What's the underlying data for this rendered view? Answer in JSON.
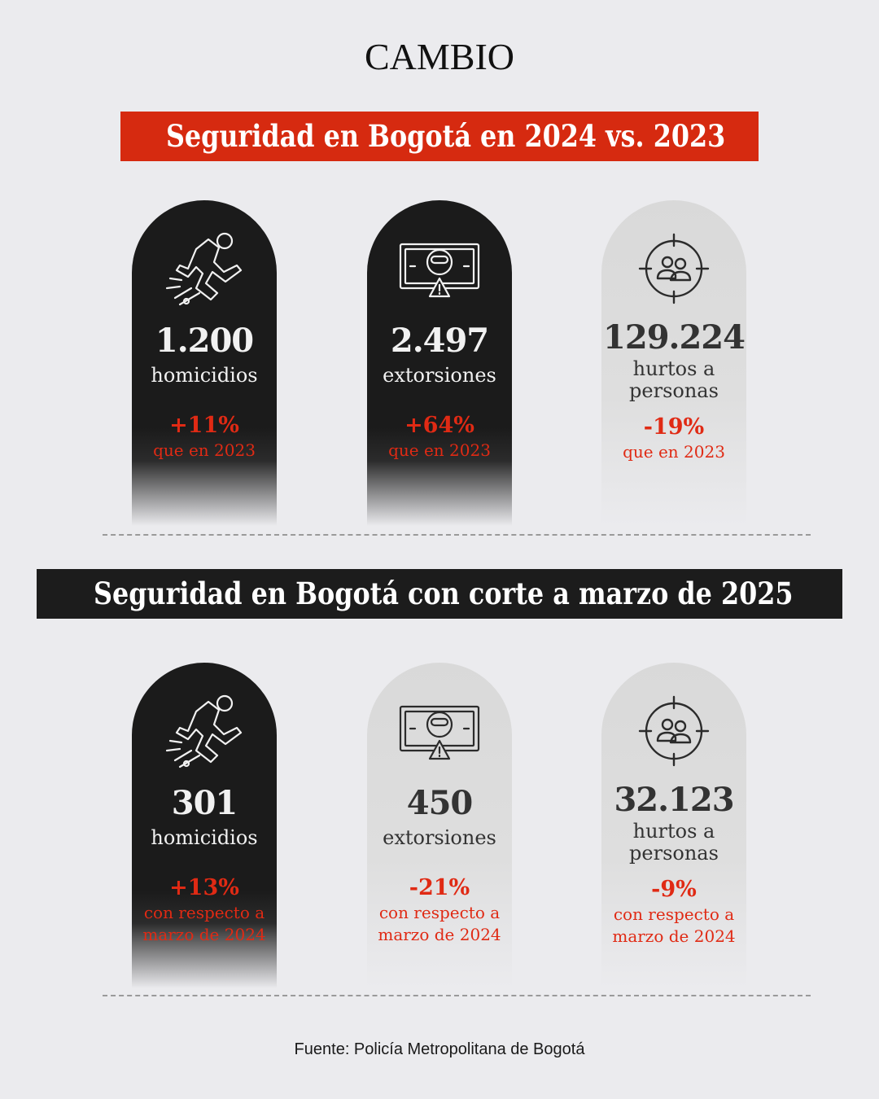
{
  "brand": "CAMBIO",
  "section1": {
    "title": "Seguridad en Bogotá en 2024 vs. 2023",
    "accent": "#d62a10",
    "cards": [
      {
        "icon": "running-person-icon",
        "value": "1.200",
        "label": "homicidios",
        "change": "+11%",
        "comparison": "que en 2023",
        "theme": "dark"
      },
      {
        "icon": "extortion-banknote-icon",
        "value": "2.497",
        "label": "extorsiones",
        "change": "+64%",
        "comparison": "que en 2023",
        "theme": "dark"
      },
      {
        "icon": "target-people-icon",
        "value": "129.224",
        "label_line1": "hurtos a",
        "label_line2": "personas",
        "change": "-19%",
        "comparison": "que en 2023",
        "theme": "light"
      }
    ]
  },
  "section2": {
    "title": "Seguridad en Bogotá con corte a marzo de 2025",
    "cards": [
      {
        "icon": "running-person-icon",
        "value": "301",
        "label": "homicidios",
        "change": "+13%",
        "comparison_line1": "con respecto a",
        "comparison_line2": "marzo de 2024",
        "theme": "dark"
      },
      {
        "icon": "extortion-banknote-icon",
        "value": "450",
        "label": "extorsiones",
        "change": "-21%",
        "comparison_line1": "con respecto a",
        "comparison_line2": "marzo de 2024",
        "theme": "light"
      },
      {
        "icon": "target-people-icon",
        "value": "32.123",
        "label_line1": "hurtos a",
        "label_line2": "personas",
        "change": "-9%",
        "comparison_line1": "con respecto a",
        "comparison_line2": "marzo de 2024",
        "theme": "light"
      }
    ]
  },
  "source": "Fuente: Policía Metropolitana de Bogotá",
  "colors": {
    "red": "#e02a14",
    "dark": "#1b1b1b",
    "light_card": "#d9d9d9",
    "background": "#ebebee"
  }
}
